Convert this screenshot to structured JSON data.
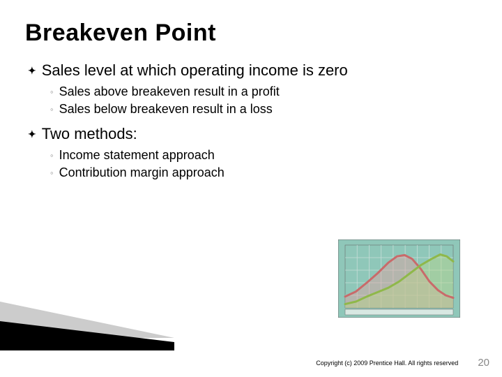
{
  "title": "Breakeven Point",
  "bullets": [
    {
      "text": "Sales level at which operating income is zero",
      "subs": [
        "Sales above breakeven result in a profit",
        "Sales below breakeven result in a loss"
      ]
    },
    {
      "text": "Two methods:",
      "subs": [
        "Income statement approach",
        "Contribution margin approach"
      ]
    }
  ],
  "footer": {
    "copyright": "Copyright (c) 2009 Prentice Hall. All rights reserved",
    "page": "20"
  },
  "decor": {
    "wedge_light": "#cccccc",
    "wedge_dark": "#000000"
  },
  "chart": {
    "type": "line",
    "width": 175,
    "height": 112,
    "background": "#8fc7b9",
    "plot_background": "#8fc7b9",
    "border_color": "#6a6a6a",
    "grid_color": "#c8ded8",
    "grid_rows": 5,
    "grid_cols": 9,
    "series": [
      {
        "name": "red",
        "stroke": "#c96a6a",
        "fill": "#e3a0a0",
        "fill_opacity": 0.45,
        "line_width": 3,
        "points": [
          {
            "x": 0.0,
            "y": 0.18
          },
          {
            "x": 0.1,
            "y": 0.26
          },
          {
            "x": 0.2,
            "y": 0.4
          },
          {
            "x": 0.3,
            "y": 0.55
          },
          {
            "x": 0.4,
            "y": 0.72
          },
          {
            "x": 0.48,
            "y": 0.82
          },
          {
            "x": 0.55,
            "y": 0.84
          },
          {
            "x": 0.62,
            "y": 0.78
          },
          {
            "x": 0.7,
            "y": 0.62
          },
          {
            "x": 0.78,
            "y": 0.42
          },
          {
            "x": 0.86,
            "y": 0.28
          },
          {
            "x": 0.93,
            "y": 0.2
          },
          {
            "x": 1.0,
            "y": 0.16
          }
        ]
      },
      {
        "name": "green",
        "stroke": "#8fb84a",
        "fill": "#b9d48a",
        "fill_opacity": 0.45,
        "line_width": 3,
        "points": [
          {
            "x": 0.0,
            "y": 0.06
          },
          {
            "x": 0.1,
            "y": 0.1
          },
          {
            "x": 0.2,
            "y": 0.18
          },
          {
            "x": 0.3,
            "y": 0.25
          },
          {
            "x": 0.4,
            "y": 0.32
          },
          {
            "x": 0.5,
            "y": 0.42
          },
          {
            "x": 0.6,
            "y": 0.55
          },
          {
            "x": 0.7,
            "y": 0.68
          },
          {
            "x": 0.8,
            "y": 0.78
          },
          {
            "x": 0.88,
            "y": 0.85
          },
          {
            "x": 0.94,
            "y": 0.82
          },
          {
            "x": 1.0,
            "y": 0.74
          }
        ]
      }
    ]
  }
}
